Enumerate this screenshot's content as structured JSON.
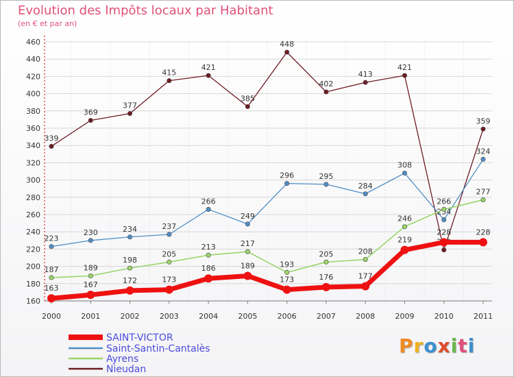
{
  "header": {
    "title": "Evolution des Impôts locaux par Habitant",
    "subtitle": "(en € et par an)"
  },
  "brand": {
    "logo_text": "Proxiti"
  },
  "chart_data": {
    "type": "line",
    "title": "Evolution des Impôts locaux par Habitant",
    "subtitle": "(en € et par an)",
    "xlabel": "",
    "ylabel": "",
    "ylim": [
      160,
      460
    ],
    "ytick_step": 20,
    "grid": true,
    "legend_position": "bottom-left",
    "categories": [
      "2000",
      "2001",
      "2002",
      "2003",
      "2004",
      "2005",
      "2006",
      "2007",
      "2008",
      "2009",
      "2010",
      "2011"
    ],
    "series": [
      {
        "name": "Nieudan",
        "color": "#6e1a22",
        "width": 1.3,
        "values": [
          339,
          369,
          377,
          415,
          421,
          385,
          448,
          402,
          413,
          421,
          219,
          359
        ],
        "labels": [
          "339",
          "369",
          "377",
          "415",
          "421",
          "385",
          "448",
          "402",
          "413",
          "421",
          "219",
          "359"
        ]
      },
      {
        "name": "Saint-Santin-Cantalès",
        "color": "#4f8ec6",
        "width": 1.3,
        "values": [
          223,
          230,
          234,
          237,
          266,
          249,
          296,
          295,
          284,
          308,
          254,
          324
        ],
        "labels": [
          "223",
          "230",
          "234",
          "237",
          "266",
          "249",
          "296",
          "295",
          "284",
          "308",
          "254",
          "324"
        ]
      },
      {
        "name": "Ayrens",
        "color": "#9ad66a",
        "width": 1.6,
        "values": [
          187,
          189,
          198,
          205,
          213,
          217,
          193,
          205,
          208,
          246,
          266,
          277
        ],
        "labels": [
          "187",
          "189",
          "198",
          "205",
          "213",
          "217",
          "193",
          "205",
          "208",
          "246",
          "266",
          "277"
        ]
      },
      {
        "name": "SAINT-VICTOR",
        "color": "#ee1111",
        "width": 7,
        "values": [
          163,
          167,
          172,
          173,
          186,
          189,
          173,
          176,
          177,
          219,
          228,
          228
        ],
        "labels": [
          "163",
          "167",
          "172",
          "173",
          "186",
          "189",
          "173",
          "176",
          "177",
          "219",
          "228",
          "228"
        ]
      }
    ],
    "legend": [
      "SAINT-VICTOR",
      "Saint-Santin-Cantalès",
      "Ayrens",
      "Nieudan"
    ]
  }
}
